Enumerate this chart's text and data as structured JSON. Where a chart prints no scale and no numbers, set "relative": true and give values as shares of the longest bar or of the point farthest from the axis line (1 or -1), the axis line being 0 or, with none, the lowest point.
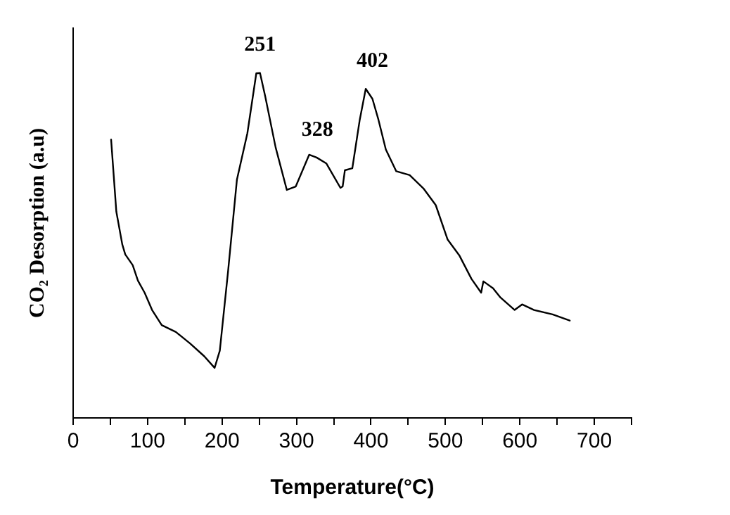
{
  "chart_data": {
    "type": "line",
    "xlabel": "Temperature(°C)",
    "ylabel": "CO₂ Desorption (a.u)",
    "relative": true,
    "xlim": [
      0,
      750
    ],
    "xticks": [
      0,
      {
        "value": 50,
        "label": null
      },
      100,
      {
        "value": 150,
        "label": null
      },
      200,
      {
        "value": 250,
        "label": null
      },
      300,
      {
        "value": 350,
        "label": null
      },
      400,
      {
        "value": 450,
        "label": null
      },
      500,
      {
        "value": 550,
        "label": null
      },
      600,
      {
        "value": 650,
        "label": null
      },
      700,
      {
        "value": 750,
        "label": null
      }
    ],
    "grid": false,
    "legend": false,
    "marker": "none",
    "line_style": "solid",
    "series": [
      {
        "color": "#000000",
        "x": [
          51,
          58,
          66,
          70,
          80,
          87,
          96,
          106,
          119,
          138,
          157,
          176,
          190,
          197,
          208,
          220,
          234,
          246,
          251,
          258,
          272,
          287,
          299,
          317,
          327,
          340,
          359,
          362,
          365,
          375,
          385,
          393,
          402,
          410,
          420,
          434,
          452,
          471,
          487,
          503,
          519,
          535,
          548,
          551,
          564,
          574,
          593,
          603,
          619,
          644,
          667
        ],
        "values": [
          0.807,
          0.598,
          0.503,
          0.474,
          0.443,
          0.398,
          0.363,
          0.313,
          0.269,
          0.249,
          0.216,
          0.179,
          0.145,
          0.195,
          0.423,
          0.691,
          0.825,
          0.999,
          1,
          0.932,
          0.784,
          0.661,
          0.671,
          0.763,
          0.755,
          0.738,
          0.667,
          0.671,
          0.718,
          0.724,
          0.865,
          0.954,
          0.925,
          0.865,
          0.778,
          0.715,
          0.704,
          0.664,
          0.617,
          0.517,
          0.47,
          0.403,
          0.363,
          0.396,
          0.376,
          0.349,
          0.313,
          0.329,
          0.313,
          0.3,
          0.282
        ]
      }
    ],
    "annotations": [
      {
        "text": "251",
        "x": 251,
        "y": 1
      },
      {
        "text": "328",
        "x": 328,
        "y": 0.755
      },
      {
        "text": "402",
        "x": 402,
        "y": 0.954
      }
    ]
  }
}
